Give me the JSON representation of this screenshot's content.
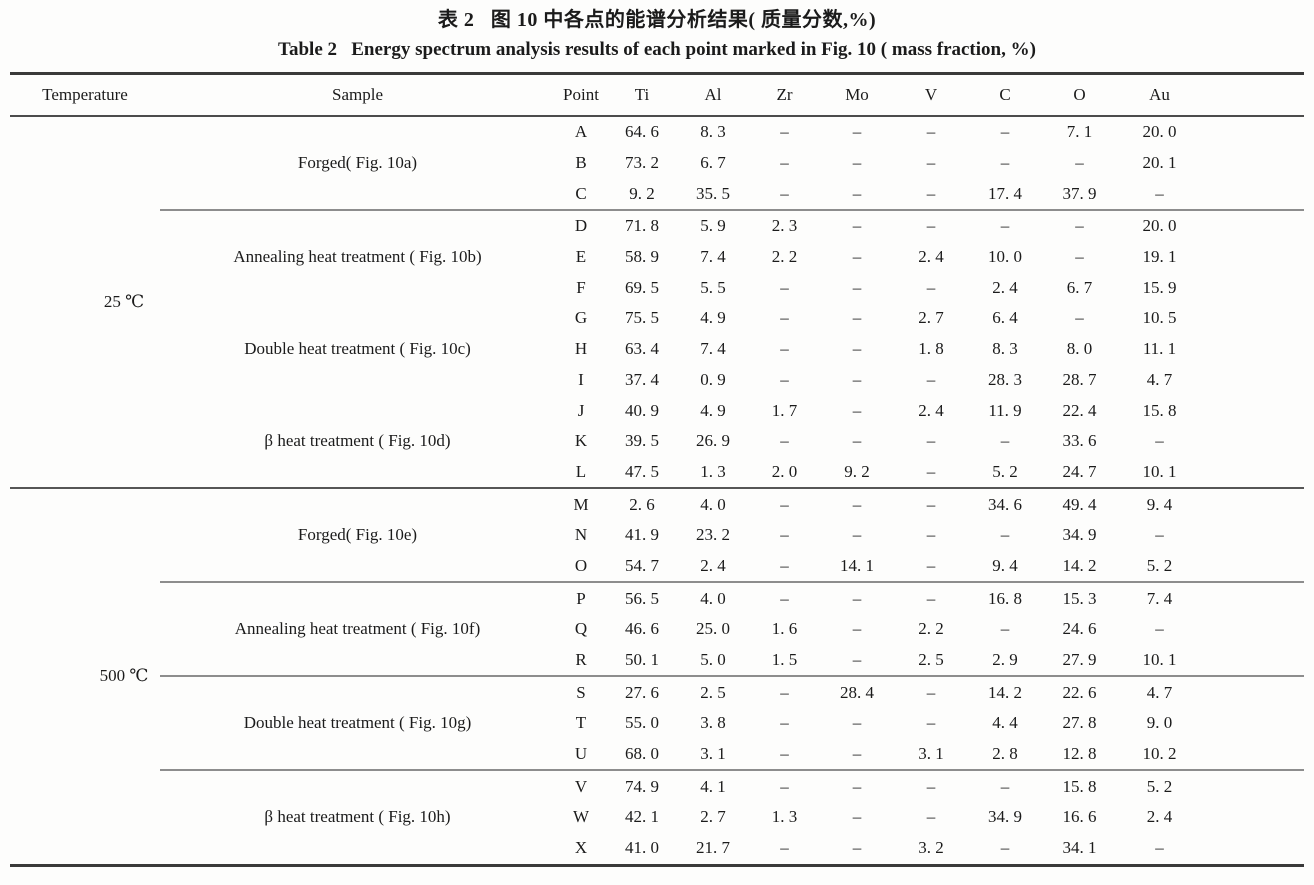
{
  "titles": {
    "chinese": "表 2   图 10 中各点的能谱分析结果( 质量分数,%)",
    "english": "Table 2   Energy spectrum analysis results of each point marked in Fig. 10 ( mass fraction, %)"
  },
  "table": {
    "columns": [
      "Temperature",
      "Sample",
      "Point",
      "Ti",
      "Al",
      "Zr",
      "Mo",
      "V",
      "C",
      "O",
      "Au"
    ],
    "no_data_symbol": "–",
    "temperature_blocks": [
      {
        "temperature": "25 ℃",
        "separator_after_block": true,
        "groups": [
          {
            "sample": "Forged( Fig. 10a)",
            "separator_after": true,
            "rows": [
              {
                "point": "A",
                "values": [
                  "64. 6",
                  "8. 3",
                  "–",
                  "–",
                  "–",
                  "–",
                  "7. 1",
                  "20. 0"
                ]
              },
              {
                "point": "B",
                "values": [
                  "73. 2",
                  "6. 7",
                  "–",
                  "–",
                  "–",
                  "–",
                  "–",
                  "20. 1"
                ]
              },
              {
                "point": "C",
                "values": [
                  "9. 2",
                  "35. 5",
                  "–",
                  "–",
                  "–",
                  "17. 4",
                  "37. 9",
                  "–"
                ]
              }
            ]
          },
          {
            "sample": "Annealing heat treatment ( Fig. 10b)",
            "separator_after": false,
            "rows": [
              {
                "point": "D",
                "values": [
                  "71. 8",
                  "5. 9",
                  "2. 3",
                  "–",
                  "–",
                  "–",
                  "–",
                  "20. 0"
                ]
              },
              {
                "point": "E",
                "values": [
                  "58. 9",
                  "7. 4",
                  "2. 2",
                  "–",
                  "2. 4",
                  "10. 0",
                  "–",
                  "19. 1"
                ]
              },
              {
                "point": "F",
                "values": [
                  "69. 5",
                  "5. 5",
                  "–",
                  "–",
                  "–",
                  "2. 4",
                  "6. 7",
                  "15. 9"
                ]
              }
            ]
          },
          {
            "sample": "Double heat treatment ( Fig. 10c)",
            "separator_after": false,
            "rows": [
              {
                "point": "G",
                "values": [
                  "75. 5",
                  "4. 9",
                  "–",
                  "–",
                  "2. 7",
                  "6. 4",
                  "–",
                  "10. 5"
                ]
              },
              {
                "point": "H",
                "values": [
                  "63. 4",
                  "7. 4",
                  "–",
                  "–",
                  "1. 8",
                  "8. 3",
                  "8. 0",
                  "11. 1"
                ]
              },
              {
                "point": "I",
                "values": [
                  "37. 4",
                  "0. 9",
                  "–",
                  "–",
                  "–",
                  "28. 3",
                  "28. 7",
                  "4. 7"
                ]
              }
            ]
          },
          {
            "sample": "β heat treatment ( Fig. 10d)",
            "separator_after": false,
            "rows": [
              {
                "point": "J",
                "values": [
                  "40. 9",
                  "4. 9",
                  "1. 7",
                  "–",
                  "2. 4",
                  "11. 9",
                  "22. 4",
                  "15. 8"
                ]
              },
              {
                "point": "K",
                "values": [
                  "39. 5",
                  "26. 9",
                  "–",
                  "–",
                  "–",
                  "–",
                  "33. 6",
                  "–"
                ]
              },
              {
                "point": "L",
                "values": [
                  "47. 5",
                  "1. 3",
                  "2. 0",
                  "9. 2",
                  "–",
                  "5. 2",
                  "24. 7",
                  "10. 1"
                ]
              }
            ]
          }
        ]
      },
      {
        "temperature": "500 ℃",
        "separator_after_block": false,
        "groups": [
          {
            "sample": "Forged( Fig. 10e)",
            "separator_after": true,
            "rows": [
              {
                "point": "M",
                "values": [
                  "2. 6",
                  "4. 0",
                  "–",
                  "–",
                  "–",
                  "34. 6",
                  "49. 4",
                  "9. 4"
                ]
              },
              {
                "point": "N",
                "values": [
                  "41. 9",
                  "23. 2",
                  "–",
                  "–",
                  "–",
                  "–",
                  "34. 9",
                  "–"
                ]
              },
              {
                "point": "O",
                "values": [
                  "54. 7",
                  "2. 4",
                  "–",
                  "14. 1",
                  "–",
                  "9. 4",
                  "14. 2",
                  "5. 2"
                ]
              }
            ]
          },
          {
            "sample": "Annealing heat treatment ( Fig. 10f)",
            "separator_after": true,
            "rows": [
              {
                "point": "P",
                "values": [
                  "56. 5",
                  "4. 0",
                  "–",
                  "–",
                  "–",
                  "16. 8",
                  "15. 3",
                  "7. 4"
                ]
              },
              {
                "point": "Q",
                "values": [
                  "46. 6",
                  "25. 0",
                  "1. 6",
                  "–",
                  "2. 2",
                  "–",
                  "24. 6",
                  "–"
                ]
              },
              {
                "point": "R",
                "values": [
                  "50. 1",
                  "5. 0",
                  "1. 5",
                  "–",
                  "2. 5",
                  "2. 9",
                  "27. 9",
                  "10. 1"
                ]
              }
            ]
          },
          {
            "sample": "Double heat treatment ( Fig. 10g)",
            "separator_after": true,
            "rows": [
              {
                "point": "S",
                "values": [
                  "27. 6",
                  "2. 5",
                  "–",
                  "28. 4",
                  "–",
                  "14. 2",
                  "22. 6",
                  "4. 7"
                ]
              },
              {
                "point": "T",
                "values": [
                  "55. 0",
                  "3. 8",
                  "–",
                  "–",
                  "–",
                  "4. 4",
                  "27. 8",
                  "9. 0"
                ]
              },
              {
                "point": "U",
                "values": [
                  "68. 0",
                  "3. 1",
                  "–",
                  "–",
                  "3. 1",
                  "2. 8",
                  "12. 8",
                  "10. 2"
                ]
              }
            ]
          },
          {
            "sample": "β heat treatment ( Fig. 10h)",
            "separator_after": false,
            "rows": [
              {
                "point": "V",
                "values": [
                  "74. 9",
                  "4. 1",
                  "–",
                  "–",
                  "–",
                  "–",
                  "15. 8",
                  "5. 2"
                ]
              },
              {
                "point": "W",
                "values": [
                  "42. 1",
                  "2. 7",
                  "1. 3",
                  "–",
                  "–",
                  "34. 9",
                  "16. 6",
                  "2. 4"
                ]
              },
              {
                "point": "X",
                "values": [
                  "41. 0",
                  "21. 7",
                  "–",
                  "–",
                  "3. 2",
                  "–",
                  "34. 1",
                  "–"
                ]
              }
            ]
          }
        ]
      }
    ]
  }
}
